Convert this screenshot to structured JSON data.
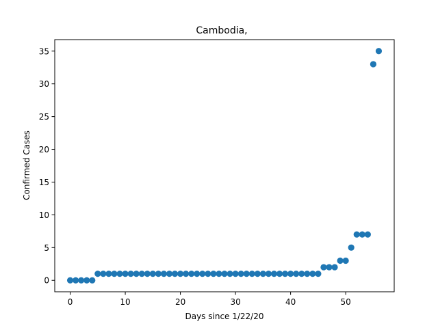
{
  "chart_data": {
    "type": "scatter",
    "title": "Cambodia,",
    "xlabel": "Days since 1/22/20",
    "ylabel": "Confirmed Cases",
    "xlim": [
      -2.8,
      58.8
    ],
    "ylim": [
      -1.75,
      36.75
    ],
    "xticks": [
      0,
      10,
      20,
      30,
      40,
      50
    ],
    "yticks": [
      0,
      5,
      10,
      15,
      20,
      25,
      30,
      35
    ],
    "grid": false,
    "marker_color": "#1f77b4",
    "x": [
      0,
      1,
      2,
      3,
      4,
      5,
      6,
      7,
      8,
      9,
      10,
      11,
      12,
      13,
      14,
      15,
      16,
      17,
      18,
      19,
      20,
      21,
      22,
      23,
      24,
      25,
      26,
      27,
      28,
      29,
      30,
      31,
      32,
      33,
      34,
      35,
      36,
      37,
      38,
      39,
      40,
      41,
      42,
      43,
      44,
      45,
      46,
      47,
      48,
      49,
      50,
      51,
      52,
      53,
      54,
      55,
      56
    ],
    "y": [
      0,
      0,
      0,
      0,
      0,
      1,
      1,
      1,
      1,
      1,
      1,
      1,
      1,
      1,
      1,
      1,
      1,
      1,
      1,
      1,
      1,
      1,
      1,
      1,
      1,
      1,
      1,
      1,
      1,
      1,
      1,
      1,
      1,
      1,
      1,
      1,
      1,
      1,
      1,
      1,
      1,
      1,
      1,
      1,
      1,
      1,
      2,
      2,
      2,
      3,
      3,
      5,
      7,
      7,
      7,
      33,
      35
    ]
  }
}
